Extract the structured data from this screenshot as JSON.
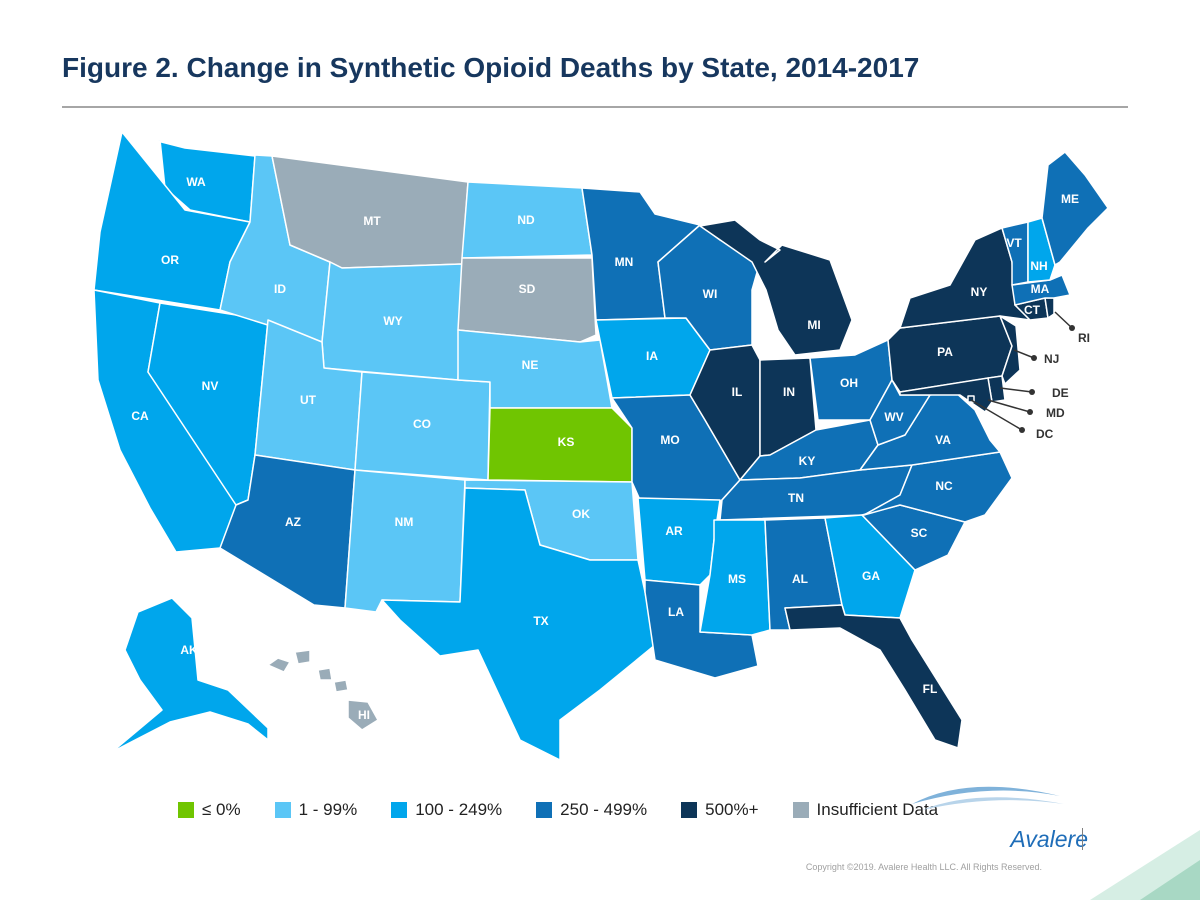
{
  "title": "Figure 2. Change in Synthetic Opioid Deaths by State, 2014-2017",
  "colors": {
    "le0": "#70c501",
    "r1_99": "#5bc6f6",
    "r100_249": "#00a6ec",
    "r250_499": "#0f70b6",
    "r500": "#0d3558",
    "insufficient": "#9aacb8"
  },
  "legend": [
    {
      "label": "≤ 0%",
      "color_key": "le0"
    },
    {
      "label": "1 - 99%",
      "color_key": "r1_99"
    },
    {
      "label": "100 - 249%",
      "color_key": "r100_249"
    },
    {
      "label": "250 - 499%",
      "color_key": "r250_499"
    },
    {
      "label": "500%+",
      "color_key": "r500"
    },
    {
      "label": "Insufficient Data",
      "color_key": "insufficient"
    }
  ],
  "states": [
    {
      "abbr": "WA",
      "category": "r100_249"
    },
    {
      "abbr": "OR",
      "category": "r100_249"
    },
    {
      "abbr": "CA",
      "category": "r100_249"
    },
    {
      "abbr": "NV",
      "category": "r100_249"
    },
    {
      "abbr": "ID",
      "category": "r1_99"
    },
    {
      "abbr": "MT",
      "category": "insufficient"
    },
    {
      "abbr": "WY",
      "category": "r1_99"
    },
    {
      "abbr": "UT",
      "category": "r1_99"
    },
    {
      "abbr": "AZ",
      "category": "r250_499"
    },
    {
      "abbr": "CO",
      "category": "r1_99"
    },
    {
      "abbr": "NM",
      "category": "r1_99"
    },
    {
      "abbr": "ND",
      "category": "r1_99"
    },
    {
      "abbr": "SD",
      "category": "insufficient"
    },
    {
      "abbr": "NE",
      "category": "r1_99"
    },
    {
      "abbr": "KS",
      "category": "le0"
    },
    {
      "abbr": "OK",
      "category": "r1_99"
    },
    {
      "abbr": "TX",
      "category": "r100_249"
    },
    {
      "abbr": "MN",
      "category": "r250_499"
    },
    {
      "abbr": "IA",
      "category": "r100_249"
    },
    {
      "abbr": "MO",
      "category": "r250_499"
    },
    {
      "abbr": "AR",
      "category": "r100_249"
    },
    {
      "abbr": "LA",
      "category": "r250_499"
    },
    {
      "abbr": "WI",
      "category": "r250_499"
    },
    {
      "abbr": "IL",
      "category": "r500"
    },
    {
      "abbr": "MI",
      "category": "r500"
    },
    {
      "abbr": "IN",
      "category": "r500"
    },
    {
      "abbr": "OH",
      "category": "r250_499"
    },
    {
      "abbr": "KY",
      "category": "r250_499"
    },
    {
      "abbr": "TN",
      "category": "r250_499"
    },
    {
      "abbr": "MS",
      "category": "r100_249"
    },
    {
      "abbr": "AL",
      "category": "r250_499"
    },
    {
      "abbr": "GA",
      "category": "r100_249"
    },
    {
      "abbr": "FL",
      "category": "r500"
    },
    {
      "abbr": "SC",
      "category": "r250_499"
    },
    {
      "abbr": "NC",
      "category": "r250_499"
    },
    {
      "abbr": "VA",
      "category": "r250_499"
    },
    {
      "abbr": "WV",
      "category": "r250_499"
    },
    {
      "abbr": "PA",
      "category": "r500"
    },
    {
      "abbr": "NY",
      "category": "r500"
    },
    {
      "abbr": "VT",
      "category": "r250_499"
    },
    {
      "abbr": "NH",
      "category": "r100_249"
    },
    {
      "abbr": "ME",
      "category": "r250_499"
    },
    {
      "abbr": "MA",
      "category": "r250_499"
    },
    {
      "abbr": "CT",
      "category": "r500"
    },
    {
      "abbr": "RI",
      "category": "r500"
    },
    {
      "abbr": "NJ",
      "category": "r500"
    },
    {
      "abbr": "DE",
      "category": "r500"
    },
    {
      "abbr": "MD",
      "category": "r500"
    },
    {
      "abbr": "DC",
      "category": "r500"
    },
    {
      "abbr": "AK",
      "category": "r100_249"
    },
    {
      "abbr": "HI",
      "category": "insufficient"
    }
  ],
  "brand": "Avalere",
  "copyright": "Copyright ©2019. Avalere Health LLC. All Rights Reserved."
}
